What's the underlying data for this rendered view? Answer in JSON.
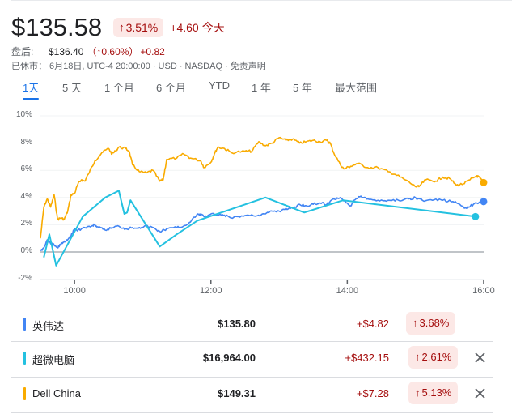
{
  "quote": {
    "price": "$135.58",
    "change_pct": "3.51%",
    "change_abs": "+4.60",
    "period_label": "今天",
    "after_hours_label": "盘后:",
    "after_hours_price": "$136.40",
    "after_hours_pct": "（↑0.60%）",
    "after_hours_abs": "+0.82",
    "meta": "已休市：  6月18日, UTC-4 20:00:00 · USD · NASDAQ · 免责声明",
    "up_color": "#a50e0e",
    "up_bg": "#fce8e6"
  },
  "tabs": [
    {
      "label": "1天",
      "active": true
    },
    {
      "label": "5 天",
      "active": false
    },
    {
      "label": "1 个月",
      "active": false
    },
    {
      "label": "6 个月",
      "active": false
    },
    {
      "label": "YTD",
      "active": false
    },
    {
      "label": "1 年",
      "active": false
    },
    {
      "label": "5 年",
      "active": false
    },
    {
      "label": "最大范围",
      "active": false
    }
  ],
  "chart_data": {
    "type": "line",
    "title": "",
    "xlabel": "",
    "ylabel": "",
    "x_ticks": [
      "10:00",
      "12:00",
      "14:00",
      "16:00"
    ],
    "y_ticks": [
      "10%",
      "8%",
      "6%",
      "4%",
      "2%",
      "0%",
      "-2%"
    ],
    "ylim": [
      -2,
      10
    ],
    "xlim": [
      "9:30",
      "16:00"
    ],
    "grid": true,
    "series": [
      {
        "name": "Dell China",
        "color": "#f9ab00",
        "points": [
          [
            9.5,
            1.0
          ],
          [
            9.55,
            3.3
          ],
          [
            9.6,
            3.9
          ],
          [
            9.65,
            3.3
          ],
          [
            9.7,
            4.2
          ],
          [
            9.75,
            2.4
          ],
          [
            9.8,
            2.5
          ],
          [
            9.85,
            2.4
          ],
          [
            9.9,
            3.0
          ],
          [
            9.95,
            4.2
          ],
          [
            10.0,
            4.3
          ],
          [
            10.05,
            5.0
          ],
          [
            10.1,
            5.3
          ],
          [
            10.15,
            5.2
          ],
          [
            10.2,
            5.7
          ],
          [
            10.3,
            6.7
          ],
          [
            10.4,
            7.3
          ],
          [
            10.5,
            7.6
          ],
          [
            10.55,
            7.2
          ],
          [
            10.6,
            7.4
          ],
          [
            10.65,
            7.7
          ],
          [
            10.75,
            7.6
          ],
          [
            10.8,
            7.4
          ],
          [
            10.85,
            6.4
          ],
          [
            10.95,
            5.9
          ],
          [
            11.05,
            5.8
          ],
          [
            11.15,
            6.0
          ],
          [
            11.25,
            5.2
          ],
          [
            11.3,
            5.3
          ],
          [
            11.35,
            6.8
          ],
          [
            11.5,
            6.9
          ],
          [
            11.6,
            7.2
          ],
          [
            11.7,
            6.9
          ],
          [
            11.85,
            6.7
          ],
          [
            11.9,
            6.2
          ],
          [
            12.0,
            6.6
          ],
          [
            12.05,
            7.2
          ],
          [
            12.1,
            7.7
          ],
          [
            12.2,
            7.6
          ],
          [
            12.3,
            7.3
          ],
          [
            12.5,
            7.4
          ],
          [
            12.6,
            7.4
          ],
          [
            12.7,
            8.1
          ],
          [
            12.8,
            7.8
          ],
          [
            12.9,
            8.0
          ],
          [
            13.0,
            8.4
          ],
          [
            13.1,
            8.2
          ],
          [
            13.2,
            8.3
          ],
          [
            13.3,
            8.0
          ],
          [
            13.4,
            8.1
          ],
          [
            13.5,
            8.2
          ],
          [
            13.6,
            8.1
          ],
          [
            13.7,
            8.2
          ],
          [
            13.75,
            8.0
          ],
          [
            13.8,
            7.3
          ],
          [
            13.9,
            6.4
          ],
          [
            13.95,
            6.1
          ],
          [
            14.05,
            6.3
          ],
          [
            14.15,
            6.5
          ],
          [
            14.3,
            6.2
          ],
          [
            14.45,
            6.2
          ],
          [
            14.6,
            5.9
          ],
          [
            14.7,
            5.7
          ],
          [
            14.85,
            5.3
          ],
          [
            15.0,
            4.8
          ],
          [
            15.05,
            4.8
          ],
          [
            15.15,
            5.3
          ],
          [
            15.3,
            5.2
          ],
          [
            15.4,
            5.5
          ],
          [
            15.5,
            5.4
          ],
          [
            15.6,
            4.9
          ],
          [
            15.7,
            5.0
          ],
          [
            15.8,
            5.3
          ],
          [
            15.9,
            5.6
          ],
          [
            15.95,
            5.4
          ],
          [
            16.0,
            5.1
          ]
        ]
      },
      {
        "name": "英伟达",
        "color": "#4285f4",
        "points": [
          [
            9.5,
            0.1
          ],
          [
            9.55,
            0.3
          ],
          [
            9.6,
            0.9
          ],
          [
            9.65,
            0.6
          ],
          [
            9.7,
            0.5
          ],
          [
            9.75,
            0.3
          ],
          [
            9.8,
            0.6
          ],
          [
            9.85,
            0.8
          ],
          [
            9.9,
            0.9
          ],
          [
            9.95,
            1.2
          ],
          [
            10.0,
            1.7
          ],
          [
            10.05,
            1.6
          ],
          [
            10.15,
            1.8
          ],
          [
            10.25,
            1.9
          ],
          [
            10.3,
            2.0
          ],
          [
            10.35,
            1.8
          ],
          [
            10.45,
            1.6
          ],
          [
            10.55,
            1.8
          ],
          [
            10.65,
            1.9
          ],
          [
            10.75,
            1.7
          ],
          [
            10.85,
            1.8
          ],
          [
            10.95,
            1.8
          ],
          [
            11.05,
            1.9
          ],
          [
            11.15,
            1.8
          ],
          [
            11.25,
            1.5
          ],
          [
            11.35,
            1.7
          ],
          [
            11.5,
            1.8
          ],
          [
            11.6,
            1.9
          ],
          [
            11.7,
            2.2
          ],
          [
            11.8,
            2.8
          ],
          [
            11.85,
            2.7
          ],
          [
            11.95,
            2.6
          ],
          [
            12.0,
            2.8
          ],
          [
            12.1,
            2.7
          ],
          [
            12.2,
            2.7
          ],
          [
            12.3,
            2.5
          ],
          [
            12.4,
            2.6
          ],
          [
            12.55,
            2.7
          ],
          [
            12.7,
            2.7
          ],
          [
            12.8,
            2.8
          ],
          [
            12.9,
            3.0
          ],
          [
            13.0,
            3.0
          ],
          [
            13.1,
            3.2
          ],
          [
            13.2,
            3.2
          ],
          [
            13.3,
            3.5
          ],
          [
            13.4,
            3.4
          ],
          [
            13.5,
            3.5
          ],
          [
            13.6,
            3.6
          ],
          [
            13.7,
            3.5
          ],
          [
            13.8,
            3.9
          ],
          [
            13.9,
            4.0
          ],
          [
            14.0,
            3.6
          ],
          [
            14.05,
            3.4
          ],
          [
            14.1,
            3.8
          ],
          [
            14.2,
            4.1
          ],
          [
            14.3,
            3.9
          ],
          [
            14.45,
            3.8
          ],
          [
            14.6,
            3.8
          ],
          [
            14.75,
            3.8
          ],
          [
            14.9,
            3.9
          ],
          [
            15.0,
            4.0
          ],
          [
            15.1,
            3.8
          ],
          [
            15.25,
            3.8
          ],
          [
            15.4,
            3.8
          ],
          [
            15.55,
            3.7
          ],
          [
            15.65,
            3.5
          ],
          [
            15.75,
            3.2
          ],
          [
            15.85,
            3.5
          ],
          [
            15.95,
            3.7
          ],
          [
            16.0,
            3.7
          ]
        ]
      },
      {
        "name": "超微电脑",
        "color": "#24c1e0",
        "points": [
          [
            9.55,
            -0.4
          ],
          [
            9.63,
            1.3
          ],
          [
            9.73,
            -1.0
          ],
          [
            10.12,
            2.6
          ],
          [
            10.45,
            4.0
          ],
          [
            10.65,
            4.5
          ],
          [
            10.73,
            2.8
          ],
          [
            10.77,
            2.9
          ],
          [
            10.82,
            3.8
          ],
          [
            11.25,
            0.4
          ],
          [
            11.5,
            1.3
          ],
          [
            11.8,
            2.3
          ],
          [
            12.8,
            4.0
          ],
          [
            13.37,
            2.9
          ],
          [
            13.94,
            3.8
          ],
          [
            15.88,
            2.6
          ]
        ]
      }
    ]
  },
  "comparison": [
    {
      "name": "英伟达",
      "color": "#4285f4",
      "price": "$135.80",
      "change": "+$4.82",
      "pct": "3.68%",
      "removable": false
    },
    {
      "name": "超微电脑",
      "color": "#24c1e0",
      "price": "$16,964.00",
      "change": "+$432.15",
      "pct": "2.61%",
      "removable": true
    },
    {
      "name": "Dell China",
      "color": "#f9ab00",
      "price": "$149.31",
      "change": "+$7.28",
      "pct": "5.13%",
      "removable": true
    }
  ],
  "icons": {
    "up_arrow": "↑"
  }
}
